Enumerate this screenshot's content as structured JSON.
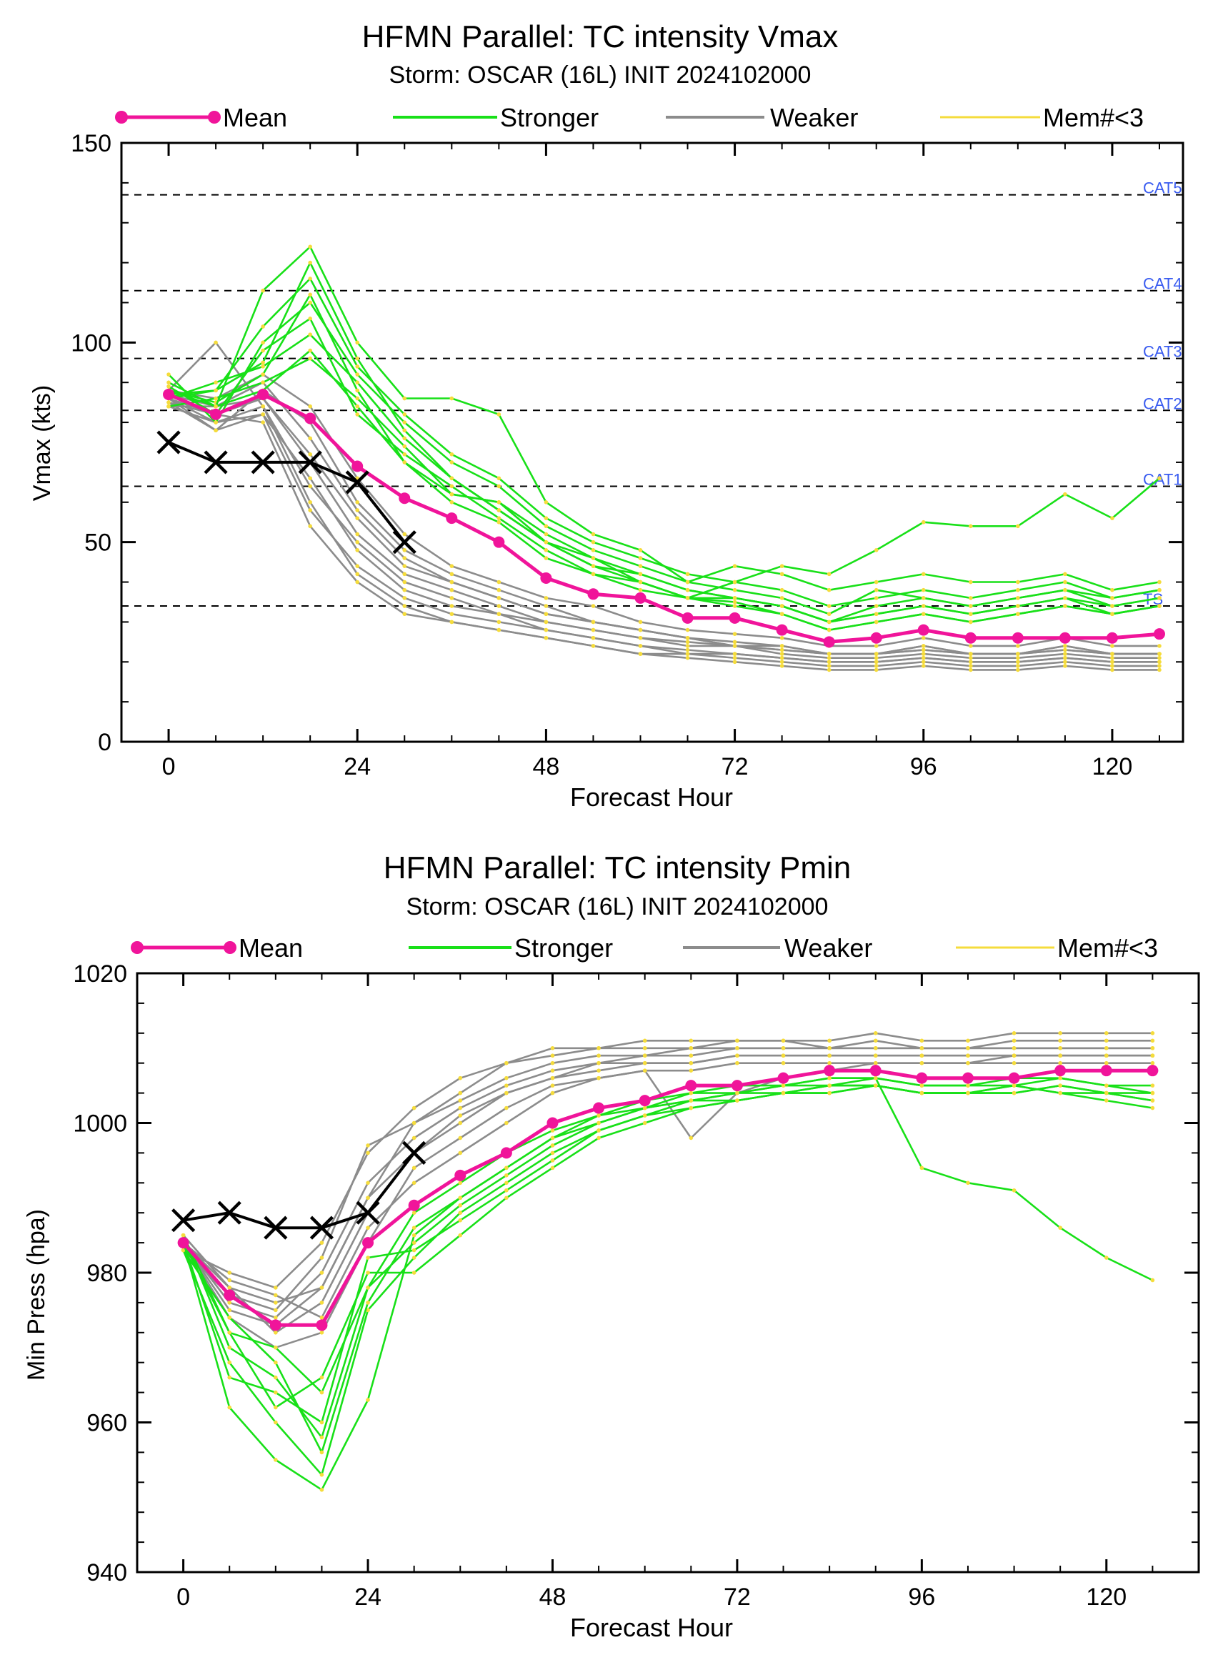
{
  "chart_data": [
    {
      "type": "line",
      "title": "HFMN Parallel: TC intensity Vmax",
      "subtitle": "Storm: OSCAR (16L) INIT 2024102000",
      "xlabel": "Forecast Hour",
      "ylabel": "Vmax (kts)",
      "xlim": [
        -6,
        129
      ],
      "ylim": [
        0,
        150
      ],
      "xticks": [
        0,
        24,
        48,
        72,
        96,
        120
      ],
      "xtick_labels": [
        "0",
        "24",
        "48",
        "72",
        "96",
        "120"
      ],
      "yticks": [
        0,
        50,
        100,
        150
      ],
      "ytick_labels": [
        "0",
        "50",
        "100",
        "150"
      ],
      "legend": [
        {
          "label": "Mean",
          "color": "#f0149a"
        },
        {
          "label": "Stronger",
          "color": "#18e018"
        },
        {
          "label": "Weaker",
          "color": "#8c8c8c"
        },
        {
          "label": "Mem#<3",
          "color": "#f5dc3c"
        }
      ],
      "legend_position": "top",
      "grid": false,
      "thresholds": [
        {
          "label": "CAT5",
          "value": 137
        },
        {
          "label": "CAT4",
          "value": 113
        },
        {
          "label": "CAT3",
          "value": 96
        },
        {
          "label": "CAT2",
          "value": 83
        },
        {
          "label": "CAT1",
          "value": 64
        },
        {
          "label": "TS",
          "value": 34
        }
      ],
      "x": [
        0,
        6,
        12,
        18,
        24,
        30,
        36,
        42,
        48,
        54,
        60,
        66,
        72,
        78,
        84,
        90,
        96,
        102,
        108,
        114,
        120,
        126
      ],
      "mean": [
        87,
        82,
        87,
        81,
        69,
        61,
        56,
        50,
        41,
        37,
        36,
        31,
        31,
        28,
        25,
        26,
        28,
        26,
        26,
        26,
        26,
        27
      ],
      "observed": {
        "x": [
          0,
          6,
          12,
          18,
          24,
          30
        ],
        "values": [
          75,
          70,
          70,
          70,
          65,
          50
        ]
      },
      "stronger_members": [
        [
          88,
          85,
          92,
          112,
          88,
          70,
          60,
          55,
          46,
          42,
          40,
          36,
          35,
          32,
          28,
          30,
          32,
          30,
          32,
          34,
          32,
          34
        ],
        [
          86,
          88,
          95,
          120,
          96,
          78,
          66,
          58,
          50,
          44,
          42,
          38,
          36,
          34,
          30,
          34,
          36,
          34,
          36,
          38,
          34,
          36
        ],
        [
          90,
          84,
          113,
          124,
          100,
          86,
          86,
          82,
          60,
          52,
          48,
          40,
          44,
          42,
          38,
          40,
          42,
          40,
          40,
          42,
          38,
          40
        ],
        [
          89,
          82,
          98,
          106,
          82,
          72,
          64,
          56,
          48,
          42,
          38,
          36,
          40,
          44,
          42,
          48,
          55,
          54,
          54,
          62,
          56,
          66
        ],
        [
          84,
          86,
          90,
          96,
          86,
          74,
          62,
          60,
          52,
          46,
          40,
          36,
          36,
          34,
          30,
          32,
          34,
          32,
          34,
          36,
          32,
          34
        ],
        [
          92,
          80,
          100,
          110,
          92,
          80,
          70,
          64,
          54,
          48,
          44,
          40,
          38,
          36,
          32,
          38,
          36,
          34,
          36,
          38,
          36,
          38
        ],
        [
          86,
          90,
          94,
          102,
          90,
          76,
          66,
          58,
          50,
          46,
          42,
          38,
          36,
          34,
          30,
          32,
          34,
          32,
          34,
          36,
          34,
          36
        ],
        [
          88,
          84,
          88,
          98,
          84,
          70,
          62,
          60,
          50,
          44,
          40,
          36,
          34,
          32,
          28,
          30,
          32,
          30,
          32,
          34,
          32,
          34
        ],
        [
          87,
          88,
          104,
          116,
          94,
          82,
          72,
          66,
          56,
          50,
          46,
          42,
          40,
          38,
          34,
          36,
          38,
          36,
          38,
          40,
          36,
          38
        ]
      ],
      "weaker_members": [
        [
          86,
          80,
          82,
          66,
          48,
          38,
          34,
          32,
          28,
          26,
          24,
          22,
          22,
          21,
          20,
          20,
          21,
          20,
          20,
          21,
          20,
          20
        ],
        [
          84,
          84,
          86,
          72,
          56,
          44,
          40,
          36,
          32,
          30,
          28,
          26,
          24,
          23,
          22,
          22,
          23,
          22,
          22,
          23,
          22,
          22
        ],
        [
          88,
          100,
          84,
          60,
          42,
          34,
          30,
          28,
          26,
          24,
          22,
          21,
          20,
          19,
          18,
          18,
          19,
          18,
          18,
          19,
          18,
          18
        ],
        [
          85,
          78,
          88,
          80,
          60,
          48,
          42,
          38,
          34,
          30,
          28,
          26,
          25,
          24,
          22,
          22,
          24,
          22,
          22,
          24,
          22,
          22
        ],
        [
          86,
          82,
          80,
          54,
          40,
          32,
          30,
          28,
          26,
          24,
          22,
          22,
          21,
          20,
          19,
          19,
          20,
          19,
          19,
          20,
          19,
          19
        ],
        [
          87,
          84,
          90,
          76,
          58,
          46,
          40,
          36,
          32,
          30,
          28,
          26,
          24,
          24,
          22,
          22,
          24,
          22,
          22,
          24,
          22,
          22
        ],
        [
          84,
          80,
          84,
          64,
          50,
          40,
          36,
          32,
          30,
          28,
          26,
          24,
          24,
          22,
          21,
          21,
          22,
          21,
          21,
          22,
          21,
          21
        ],
        [
          88,
          86,
          92,
          84,
          66,
          52,
          44,
          40,
          36,
          34,
          30,
          28,
          27,
          26,
          24,
          24,
          26,
          24,
          24,
          26,
          24,
          24
        ],
        [
          85,
          82,
          86,
          70,
          52,
          42,
          38,
          34,
          30,
          28,
          26,
          25,
          24,
          23,
          22,
          22,
          23,
          22,
          22,
          23,
          22,
          22
        ],
        [
          86,
          78,
          82,
          58,
          44,
          36,
          32,
          30,
          28,
          26,
          24,
          23,
          22,
          21,
          20,
          20,
          21,
          20,
          20,
          21,
          20,
          20
        ]
      ]
    },
    {
      "type": "line",
      "title": "HFMN Parallel: TC intensity Pmin",
      "subtitle": "Storm: OSCAR (16L) INIT 2024102000",
      "xlabel": "Forecast Hour",
      "ylabel": "Min Press (hpa)",
      "xlim": [
        -6,
        132
      ],
      "ylim": [
        940,
        1020
      ],
      "xticks": [
        0,
        24,
        48,
        72,
        96,
        120
      ],
      "xtick_labels": [
        "0",
        "24",
        "48",
        "72",
        "96",
        "120"
      ],
      "yticks": [
        940,
        960,
        980,
        1000,
        1020
      ],
      "ytick_labels": [
        "940",
        "960",
        "980",
        "1000",
        "1020"
      ],
      "legend": [
        {
          "label": "Mean",
          "color": "#f0149a"
        },
        {
          "label": "Stronger",
          "color": "#18e018"
        },
        {
          "label": "Weaker",
          "color": "#8c8c8c"
        },
        {
          "label": "Mem#<3",
          "color": "#f5dc3c"
        }
      ],
      "legend_position": "top",
      "grid": false,
      "x": [
        0,
        6,
        12,
        18,
        24,
        30,
        36,
        42,
        48,
        54,
        60,
        66,
        72,
        78,
        84,
        90,
        96,
        102,
        108,
        114,
        120,
        126
      ],
      "mean": [
        984,
        977,
        973,
        973,
        984,
        989,
        993,
        996,
        1000,
        1002,
        1003,
        1005,
        1005,
        1006,
        1007,
        1007,
        1006,
        1006,
        1006,
        1007,
        1007,
        1007
      ],
      "observed": {
        "x": [
          0,
          6,
          12,
          18,
          24,
          30
        ],
        "values": [
          987,
          988,
          986,
          986,
          988,
          996
        ]
      },
      "stronger_members": [
        [
          984,
          962,
          955,
          951,
          963,
          985,
          990,
          994,
          998,
          1000,
          1002,
          1003,
          1004,
          1005,
          1006,
          1006,
          994,
          992,
          991,
          986,
          982,
          979
        ],
        [
          983,
          968,
          960,
          953,
          975,
          982,
          988,
          992,
          996,
          999,
          1001,
          1003,
          1004,
          1004,
          1005,
          1005,
          1004,
          1004,
          1005,
          1004,
          1003,
          1002
        ],
        [
          985,
          970,
          966,
          958,
          978,
          984,
          989,
          993,
          997,
          1000,
          1002,
          1004,
          1004,
          1005,
          1005,
          1006,
          1005,
          1005,
          1006,
          1006,
          1005,
          1004
        ],
        [
          984,
          972,
          962,
          966,
          980,
          980,
          985,
          990,
          994,
          998,
          1000,
          1002,
          1003,
          1004,
          1004,
          1005,
          1004,
          1004,
          1004,
          1005,
          1004,
          1003
        ],
        [
          983,
          974,
          968,
          956,
          976,
          986,
          990,
          994,
          998,
          1001,
          1003,
          1004,
          1005,
          1005,
          1006,
          1006,
          1005,
          1005,
          1005,
          1006,
          1005,
          1005
        ],
        [
          984,
          966,
          964,
          960,
          982,
          983,
          987,
          991,
          995,
          999,
          1001,
          1002,
          1003,
          1004,
          1004,
          1005,
          1004,
          1004,
          1004,
          1005,
          1004,
          1004
        ],
        [
          985,
          972,
          970,
          964,
          978,
          988,
          992,
          996,
          999,
          1001,
          1002,
          1003,
          1003,
          1004,
          1005,
          1005,
          1004,
          1004,
          1005,
          1004,
          1004,
          1003
        ]
      ],
      "weaker_members": [
        [
          984,
          978,
          976,
          978,
          990,
          1000,
          1004,
          1008,
          1009,
          1010,
          1011,
          1011,
          1011,
          1011,
          1011,
          1012,
          1011,
          1011,
          1012,
          1012,
          1012,
          1012
        ],
        [
          983,
          980,
          978,
          984,
          996,
          1002,
          1006,
          1008,
          1010,
          1010,
          1010,
          1010,
          1011,
          1011,
          1010,
          1011,
          1010,
          1010,
          1011,
          1011,
          1011,
          1011
        ],
        [
          984,
          976,
          974,
          980,
          992,
          998,
          1002,
          1005,
          1007,
          1008,
          1009,
          1009,
          1010,
          1010,
          1010,
          1010,
          1010,
          1010,
          1010,
          1010,
          1010,
          1010
        ],
        [
          985,
          978,
          972,
          976,
          988,
          996,
          1000,
          1004,
          1006,
          1007,
          1008,
          1008,
          1009,
          1009,
          1009,
          1009,
          1009,
          1009,
          1009,
          1009,
          1009,
          1009
        ],
        [
          984,
          974,
          970,
          972,
          984,
          994,
          998,
          1002,
          1005,
          1006,
          1007,
          1007,
          1008,
          1008,
          1008,
          1008,
          1008,
          1008,
          1008,
          1008,
          1008,
          1008
        ],
        [
          983,
          977,
          975,
          982,
          997,
          1000,
          1003,
          1006,
          1008,
          1009,
          1009,
          1010,
          1010,
          1010,
          1010,
          1010,
          1010,
          1010,
          1010,
          1010,
          1010,
          1010
        ],
        [
          984,
          979,
          977,
          974,
          986,
          992,
          996,
          1000,
          1004,
          1006,
          1007,
          998,
          1004,
          1006,
          1007,
          1008,
          1008,
          1008,
          1009,
          1009,
          1009,
          1009
        ],
        [
          984,
          975,
          973,
          978,
          990,
          996,
          1001,
          1004,
          1006,
          1008,
          1008,
          1008,
          1009,
          1009,
          1009,
          1009,
          1009,
          1009,
          1009,
          1009,
          1009,
          1009
        ]
      ]
    }
  ]
}
